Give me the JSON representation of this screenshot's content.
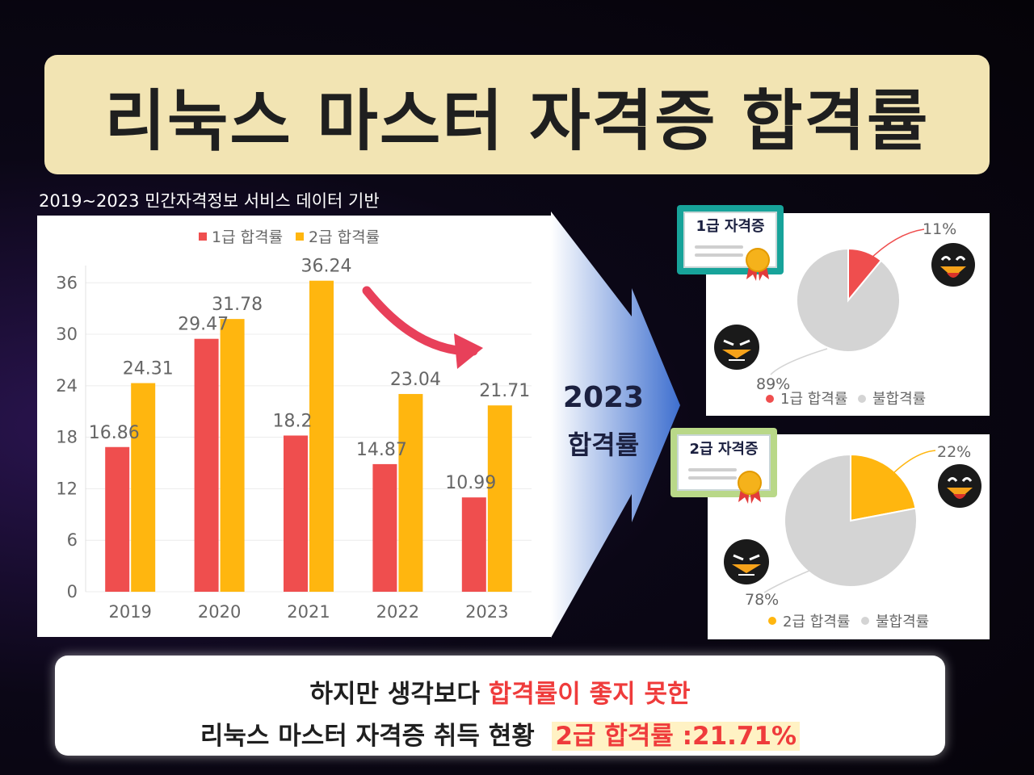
{
  "title": "리눅스 마스터 자격증 합격률",
  "source_note": "2019~2023 민간자격정보 서비스 데이터 기반",
  "chart_data": [
    {
      "type": "bar",
      "categories": [
        "2019",
        "2020",
        "2021",
        "2022",
        "2023"
      ],
      "series": [
        {
          "name": "1급 합격률",
          "color": "#ef4e4e",
          "values": [
            16.86,
            29.47,
            18.2,
            14.87,
            10.99
          ]
        },
        {
          "name": "2급 합격률",
          "color": "#ffb60f",
          "values": [
            24.31,
            31.78,
            36.24,
            23.04,
            21.71
          ]
        }
      ],
      "value_labels": [
        [
          "16.86",
          "29.47",
          "18.2",
          "14.87",
          "10.99"
        ],
        [
          "24.31",
          "31.78",
          "36.24",
          "23.04",
          "21.71"
        ]
      ],
      "yticks": [
        "0",
        "6",
        "12",
        "18",
        "24",
        "30",
        "36"
      ],
      "ylim": [
        0,
        38
      ],
      "legend_position": "top"
    },
    {
      "type": "pie",
      "labels": [
        "1급 합격률",
        "불합격률"
      ],
      "values": [
        11,
        89
      ],
      "value_labels": [
        "11%",
        "89%"
      ],
      "colors": [
        "#ef4e4e",
        "#d4d4d4"
      ]
    },
    {
      "type": "pie",
      "labels": [
        "2급 합격률",
        "불합격률"
      ],
      "values": [
        22,
        78
      ],
      "value_labels": [
        "22%",
        "78%"
      ],
      "colors": [
        "#ffb60f",
        "#d4d4d4"
      ]
    }
  ],
  "arrow": {
    "year": "2023",
    "label": "합격률"
  },
  "certificates": {
    "level1": "1급 자격증",
    "level2": "2급 자격증"
  },
  "bottom": {
    "line1_plain": "하지만 생각보다 ",
    "line1_red": "합격률이 좋지 못한",
    "line2_plain": "리눅스 마스터 자격증 취득 현황  ",
    "line2_highlight": "2급 합격률 :21.71%"
  },
  "colors": {
    "red": "#ef4e4e",
    "orange": "#ffb60f",
    "grey": "#d4d4d4",
    "banner": "#f2e4b3",
    "arrow_blue": "#3e6fcf"
  }
}
